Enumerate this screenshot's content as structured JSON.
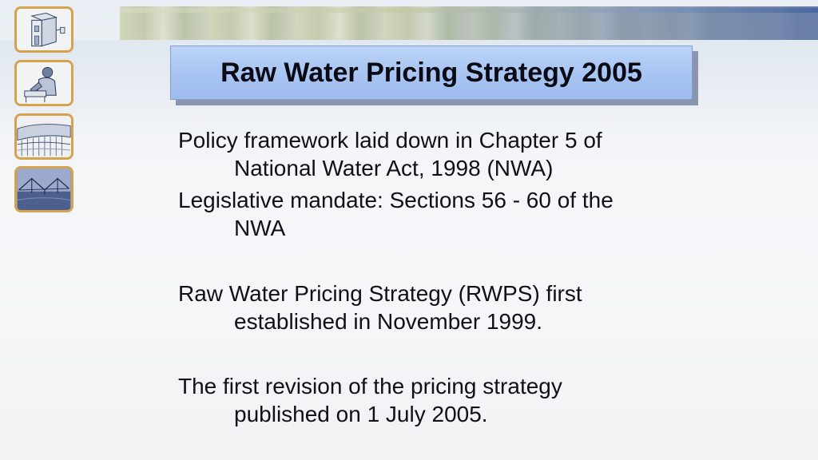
{
  "slide": {
    "title": "Raw Water Pricing Strategy 2005",
    "paragraphs": [
      {
        "line1": "Policy framework laid down in Chapter 5 of",
        "line2": "National Water Act, 1998 (NWA)"
      },
      {
        "line1": "Legislative mandate: Sections 56 - 60 of the",
        "line2": "NWA"
      },
      {
        "line1": "Raw Water Pricing Strategy (RWPS) first",
        "line2": "established in November 1999."
      },
      {
        "line1": "The first revision of the pricing strategy",
        "line2": "published on 1 July 2005."
      }
    ]
  },
  "thumbnails": [
    {
      "icon": "water-tower-icon"
    },
    {
      "icon": "worker-icon"
    },
    {
      "icon": "dam-icon"
    },
    {
      "icon": "irrigation-icon"
    }
  ],
  "colors": {
    "title_bg": "#a9c5f2",
    "thumb_border": "#d8a14c",
    "text": "#101018"
  }
}
